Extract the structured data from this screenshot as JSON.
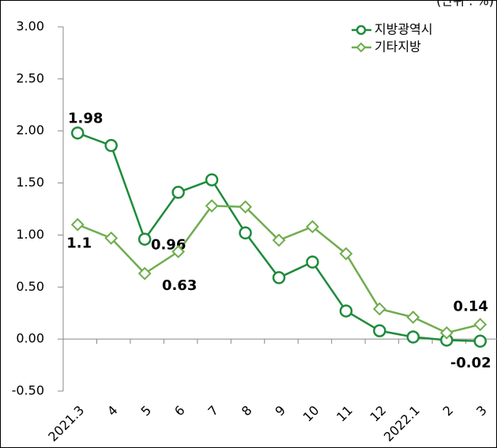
{
  "chart_data": {
    "type": "line",
    "unit_label": "(단위 : %)",
    "categories": [
      "2021.3",
      "4",
      "5",
      "6",
      "7",
      "8",
      "9",
      "10",
      "11",
      "12",
      "2022.1",
      "2",
      "3"
    ],
    "series": [
      {
        "name": "지방광역시",
        "color": "#1f8b3b",
        "marker": "circle",
        "values": [
          1.98,
          1.86,
          0.96,
          1.41,
          1.53,
          1.02,
          0.59,
          0.74,
          0.27,
          0.08,
          0.02,
          -0.01,
          -0.02
        ],
        "value_labels": [
          "1.98",
          null,
          "0.96",
          null,
          null,
          null,
          null,
          null,
          null,
          null,
          null,
          null,
          "-0.02"
        ]
      },
      {
        "name": "기타지방",
        "color": "#6fad4e",
        "marker": "diamond",
        "values": [
          1.1,
          0.97,
          0.63,
          0.84,
          1.28,
          1.27,
          0.95,
          1.08,
          0.82,
          0.29,
          0.21,
          0.06,
          0.14
        ],
        "value_labels": [
          "1.1",
          null,
          "0.63",
          null,
          null,
          null,
          null,
          null,
          null,
          null,
          null,
          null,
          "0.14"
        ]
      }
    ],
    "ylim": [
      -0.5,
      3
    ],
    "yticks": [
      {
        "value": -0.5,
        "label": "-0.50"
      },
      {
        "value": 0,
        "label": "0.00"
      },
      {
        "value": 0.5,
        "label": "0.50"
      },
      {
        "value": 1,
        "label": "1.00"
      },
      {
        "value": 1.5,
        "label": "1.50"
      },
      {
        "value": 2,
        "label": "2.00"
      },
      {
        "value": 2.5,
        "label": "2.50"
      },
      {
        "value": 3,
        "label": "3.00"
      }
    ],
    "legend": "top-right"
  }
}
